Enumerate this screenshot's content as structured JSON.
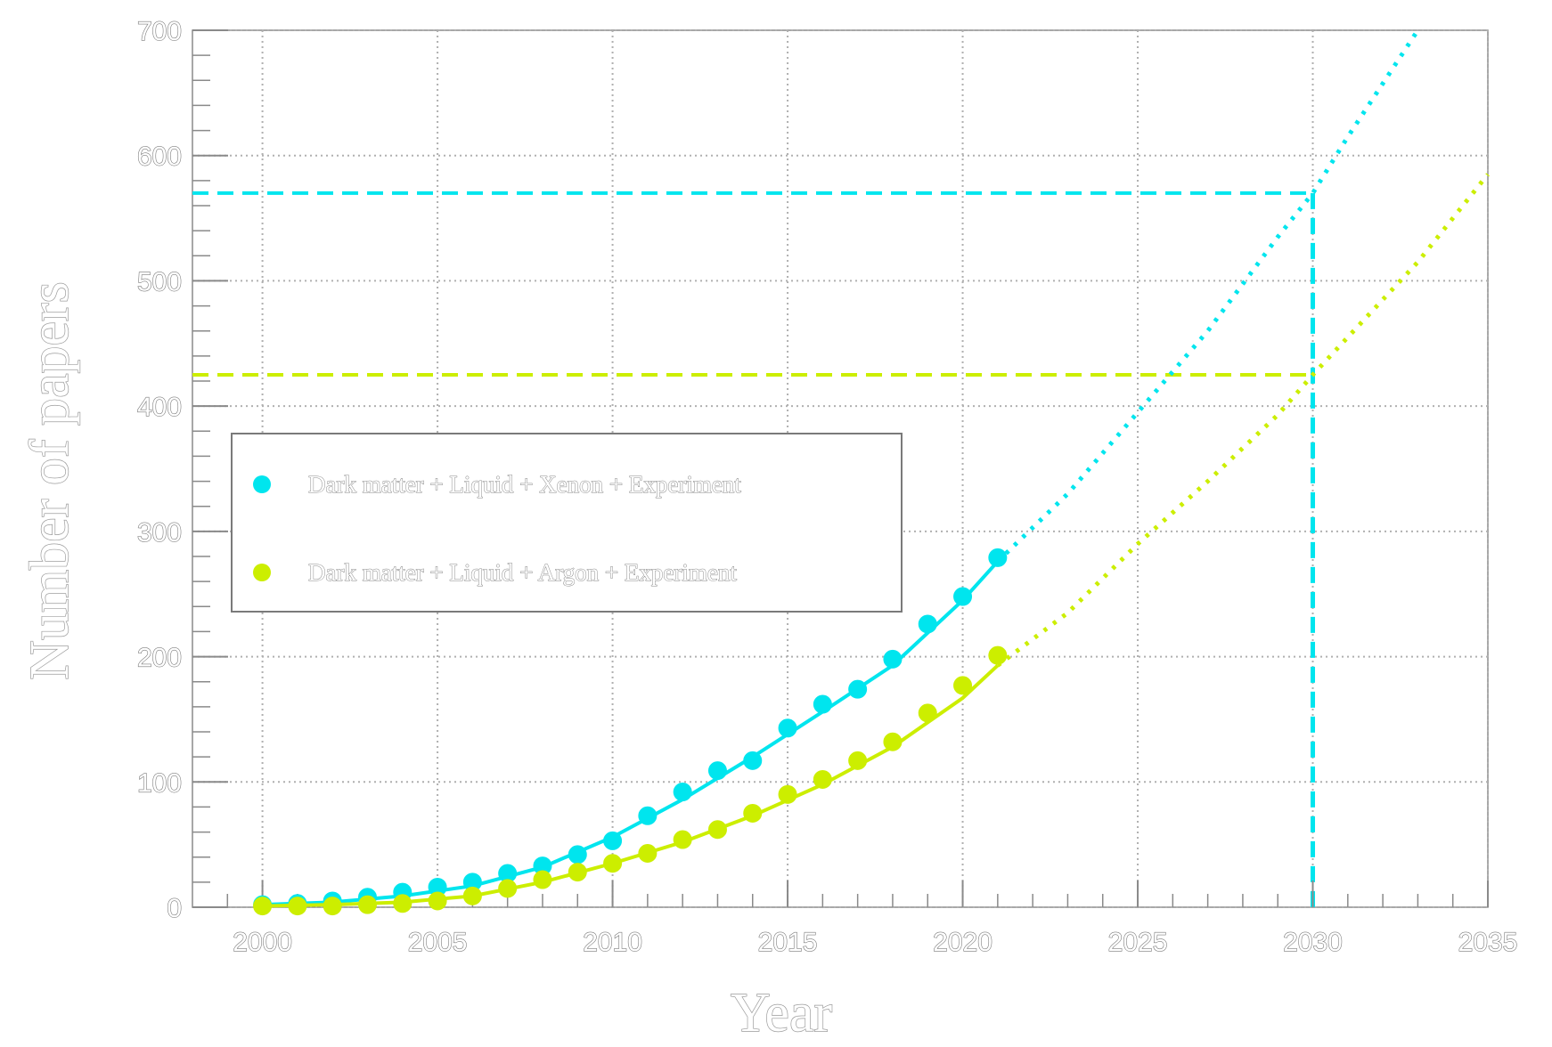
{
  "chart_data": {
    "type": "scatter",
    "title": "",
    "xlabel": "Year",
    "ylabel": "Number of papers",
    "xlim": [
      1998,
      2035
    ],
    "ylim": [
      0,
      700
    ],
    "x_ticks": [
      "2000",
      "2005",
      "2010",
      "2015",
      "2020",
      "2025",
      "2030",
      "2035"
    ],
    "y_ticks": [
      "0",
      "100",
      "200",
      "300",
      "400",
      "500",
      "600",
      "700"
    ],
    "grid": true,
    "legend_position": "middle-left",
    "series": [
      {
        "name": "Dark matter + Liquid + Xenon + Experiment",
        "color": "#00e5ee",
        "x": [
          2000,
          2001,
          2002,
          2003,
          2004,
          2005,
          2006,
          2007,
          2008,
          2009,
          2010,
          2011,
          2012,
          2013,
          2014,
          2015,
          2016,
          2017,
          2018,
          2019,
          2020,
          2021
        ],
        "y": [
          2,
          3,
          5,
          8,
          12,
          16,
          20,
          27,
          33,
          42,
          53,
          73,
          92,
          109,
          117,
          143,
          162,
          174,
          198,
          226,
          248,
          279
        ],
        "fit_x": [
          2000,
          2002,
          2004,
          2006,
          2008,
          2010,
          2012,
          2014,
          2016,
          2018,
          2020,
          2021
        ],
        "fit_y": [
          2,
          4,
          9,
          17,
          32,
          56,
          86,
          120,
          156,
          193,
          245,
          276
        ],
        "extrapolation_x": [
          2021,
          2023,
          2025,
          2027,
          2029,
          2030,
          2031,
          2033
        ],
        "extrapolation_y": [
          276,
          330,
          395,
          460,
          535,
          570,
          615,
          700
        ],
        "reference_line_y": 570
      },
      {
        "name": "Dark matter + Liquid + Argon + Experiment",
        "color": "#ccee00",
        "x": [
          2000,
          2001,
          2002,
          2003,
          2004,
          2005,
          2006,
          2007,
          2008,
          2009,
          2010,
          2011,
          2012,
          2013,
          2014,
          2015,
          2016,
          2017,
          2018,
          2019,
          2020,
          2021
        ],
        "y": [
          1,
          1,
          1,
          2,
          3,
          5,
          9,
          15,
          22,
          28,
          35,
          43,
          54,
          62,
          75,
          90,
          102,
          117,
          132,
          155,
          177,
          201
        ],
        "fit_x": [
          2000,
          2002,
          2004,
          2006,
          2008,
          2010,
          2012,
          2014,
          2016,
          2018,
          2020,
          2021
        ],
        "fit_y": [
          1,
          2,
          4,
          9,
          20,
          35,
          52,
          73,
          98,
          128,
          167,
          193
        ],
        "extrapolation_x": [
          2021,
          2023,
          2025,
          2027,
          2029,
          2030,
          2031,
          2033,
          2035
        ],
        "extrapolation_y": [
          193,
          235,
          290,
          340,
          393,
          425,
          455,
          515,
          585
        ],
        "reference_line_y": 425
      }
    ],
    "reference_line_x": 2030
  }
}
